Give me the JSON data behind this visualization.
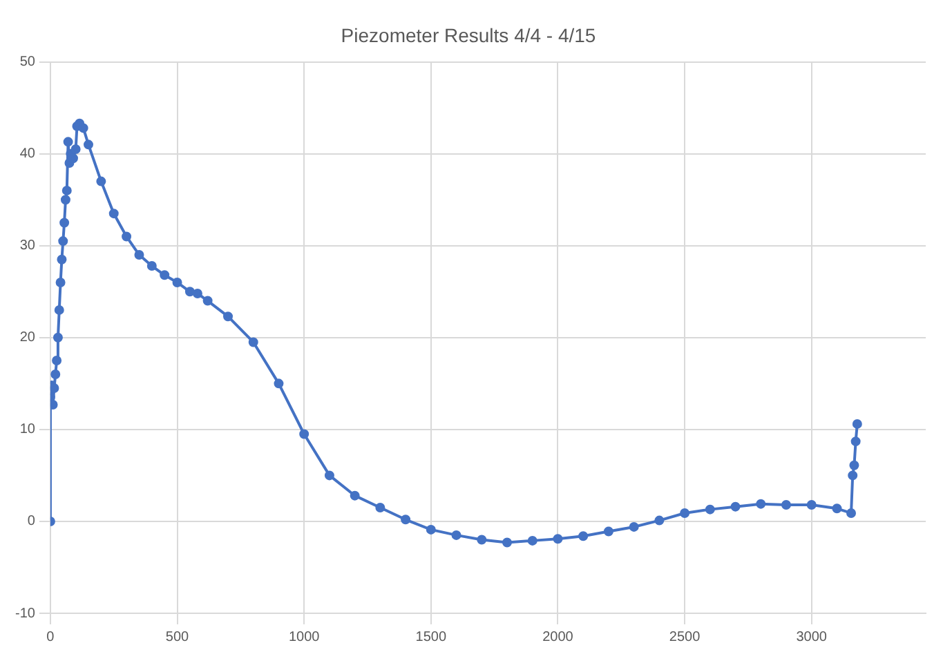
{
  "chart_data": {
    "type": "line",
    "title": "Piezometer Results 4/4 - 4/15",
    "marker": "circle",
    "grid": true,
    "legend": false,
    "xlim": [
      0,
      3450
    ],
    "xticks": [
      0,
      500,
      1000,
      1500,
      2000,
      2500,
      3000
    ],
    "ylim": [
      -10,
      50
    ],
    "yticks": [
      -10,
      0,
      10,
      20,
      30,
      40,
      50
    ],
    "series": [
      {
        "color": "#4472c4",
        "x": [
          0,
          0,
          5,
          10,
          15,
          20,
          25,
          30,
          35,
          40,
          45,
          50,
          55,
          60,
          65,
          70,
          75,
          80,
          90,
          100,
          105,
          115,
          130,
          150,
          200,
          250,
          300,
          350,
          400,
          450,
          500,
          550,
          580,
          620,
          700,
          800,
          900,
          1000,
          1100,
          1200,
          1300,
          1400,
          1500,
          1600,
          1700,
          1800,
          1900,
          2000,
          2100,
          2200,
          2300,
          2400,
          2500,
          2600,
          2700,
          2800,
          2900,
          3000,
          3100,
          3156,
          3162,
          3168,
          3174,
          3180
        ],
        "values": [
          0,
          13.5,
          14.8,
          12.7,
          14.5,
          16,
          17.5,
          20,
          23,
          26,
          28.5,
          30.5,
          32.5,
          35,
          36,
          41.3,
          39,
          40,
          39.5,
          40.5,
          43,
          43.3,
          42.8,
          41,
          37,
          33.5,
          31,
          29,
          27.8,
          26.8,
          26,
          25,
          24.8,
          24,
          22.3,
          19.5,
          15,
          9.5,
          5,
          2.8,
          1.5,
          0.2,
          -0.9,
          -1.5,
          -2,
          -2.3,
          -2.1,
          -1.9,
          -1.6,
          -1.1,
          -0.6,
          0.1,
          0.9,
          1.3,
          1.6,
          1.9,
          1.8,
          1.8,
          1.4,
          0.9,
          5,
          6.1,
          8.7,
          10.6
        ]
      }
    ]
  }
}
